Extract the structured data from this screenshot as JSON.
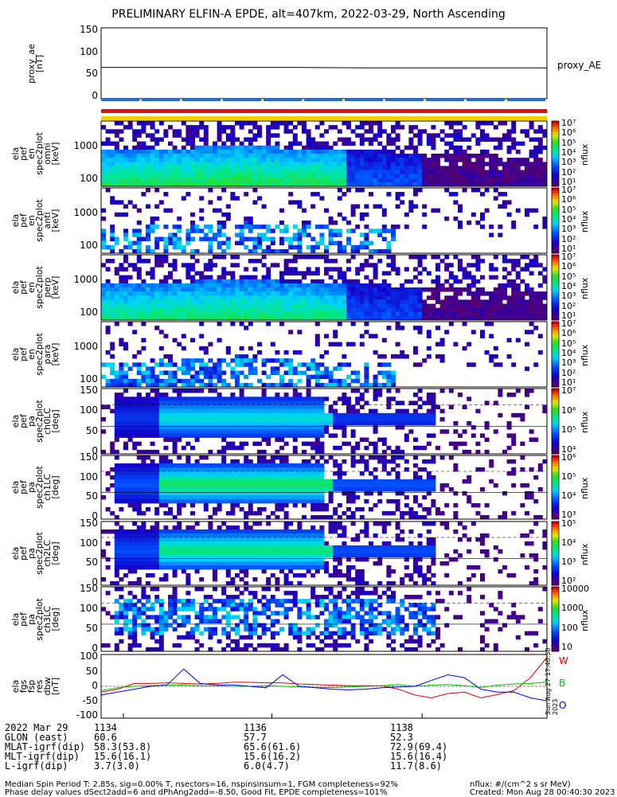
{
  "title": "PRELIMINARY ELFIN-A EPDE, alt=407km, 2022-03-29, North Ascending",
  "panels": [
    {
      "label": "proxy_ae\n[nT]",
      "ticks": [
        "150",
        "100",
        "50",
        "0"
      ],
      "right_label": "proxy_AE"
    },
    {
      "label": "ela\npef\nen\nspec2plot\nomni\n[keV]",
      "ticks": [
        "1000",
        "100"
      ],
      "cb_ticks": [
        "10⁷",
        "10⁶",
        "10⁵",
        "10⁴",
        "10³",
        "10²",
        "10¹"
      ]
    },
    {
      "label": "ela\npef\nen\nspec2plot\nanti\n[keV]",
      "ticks": [
        "1000",
        "100"
      ],
      "cb_ticks": [
        "10⁷",
        "10⁶",
        "10⁵",
        "10⁴",
        "10³",
        "10²",
        "10¹"
      ]
    },
    {
      "label": "ela\npef\nen\nspec2plot\nperp\n[keV]",
      "ticks": [
        "1000",
        "100"
      ],
      "cb_ticks": [
        "10⁷",
        "10⁶",
        "10⁵",
        "10⁴",
        "10³",
        "10²",
        "10¹"
      ]
    },
    {
      "label": "ela\npef\nen\nspec2plot\npara\n[keV]",
      "ticks": [
        "1000",
        "100"
      ],
      "cb_ticks": [
        "10⁷",
        "10⁶",
        "10⁵",
        "10⁴",
        "10³",
        "10²",
        "10¹"
      ]
    },
    {
      "label": "ela\npef\npa\nspec2plot\nch0LC\n[deg]",
      "ticks": [
        "150",
        "100",
        "50",
        "0"
      ],
      "cb_ticks": [
        "10⁷",
        "10⁶",
        "10⁵",
        "10⁴"
      ]
    },
    {
      "label": "ela\npef\npa\nspec2plot\nch1LC\n[deg]",
      "ticks": [
        "150",
        "100",
        "50",
        "0"
      ],
      "cb_ticks": [
        "10⁶",
        "10⁵",
        "10⁴",
        "10³"
      ]
    },
    {
      "label": "ela\npef\npa\nspec2plot\nch2LC\n[deg]",
      "ticks": [
        "150",
        "100",
        "50",
        "0"
      ],
      "cb_ticks": [
        "10⁵",
        "10⁴",
        "10³",
        "10²"
      ]
    },
    {
      "label": "ela\npef\npa\nspec2plot\nch3LC\n[deg]",
      "ticks": [
        "150",
        "100",
        "50",
        "0"
      ],
      "cb_ticks": [
        "10000",
        "1000",
        "100",
        "10"
      ]
    },
    {
      "label": "ela\nfgs\nfsp\nres\ndbw\n[nT]",
      "ticks": [
        "100",
        "50",
        "0",
        "-50",
        "-100"
      ]
    }
  ],
  "colorbar_label": "nflux",
  "side_stamp": "Sun Aug 27 17:40:30 2023",
  "fgs_legend": [
    "W",
    "B",
    "O"
  ],
  "bottom_rows": [
    [
      "2022 Mar 29",
      "1134",
      "1136",
      "1138"
    ],
    [
      "GLON (east)",
      "60.6",
      "57.7",
      "52.3"
    ],
    [
      "MLAT-igrf(dip)",
      "58.3(53.8)",
      "65.6(61.6)",
      "72.9(69.4)"
    ],
    [
      "MLT-igrf(dip)",
      "15.6(16.1)",
      "15.6(16.2)",
      "15.6(16.4)"
    ],
    [
      "L-igrf(dip)",
      "3.7(3.0)",
      "6.0(4.7)",
      "11.7(8.6)"
    ]
  ],
  "footer_left": [
    "Median Spin Period T: 2.85s, sig=0.00% T, nsectors=16, nspinsinsum=1, FGM completeness=92%",
    "Phase delay values dSect2add=6 and dPhAng2add=-8.50, Good Fit, EPDE completeness=101%"
  ],
  "footer_right": [
    "nflux: #/(cm^2 s sr MeV)",
    "Created: Mon Aug 28 00:40:30 2023"
  ],
  "chart_data": {
    "type": "line",
    "title": "PRELIMINARY ELFIN-A EPDE, alt=407km, 2022-03-29, North Ascending",
    "x_tick_labels": [
      "1134",
      "1136",
      "1138"
    ],
    "proxy_ae": {
      "ylim": [
        -10,
        155
      ],
      "values": [
        63,
        63,
        63,
        62,
        62,
        62
      ],
      "name": "proxy_AE"
    },
    "fgs_res_dbw": {
      "ylim": [
        -110,
        110
      ],
      "series": [
        {
          "name": "W",
          "color": "#e00000",
          "values": [
            -20,
            -10,
            10,
            10,
            12,
            10,
            8,
            10,
            14,
            14,
            12,
            12,
            8,
            6,
            4,
            2,
            2,
            2,
            -10,
            -30,
            -40,
            -25,
            -20,
            -40,
            -28,
            -15,
            30,
            100
          ]
        },
        {
          "name": "B",
          "color": "#00c000",
          "values": [
            -15,
            -5,
            0,
            2,
            4,
            4,
            2,
            2,
            0,
            0,
            2,
            0,
            -2,
            -4,
            -4,
            -2,
            0,
            2,
            6,
            0,
            4,
            6,
            2,
            -4,
            4,
            8,
            10,
            15
          ]
        },
        {
          "name": "O",
          "color": "#0000e0",
          "values": [
            -30,
            -20,
            -10,
            0,
            5,
            60,
            10,
            5,
            5,
            0,
            -5,
            40,
            0,
            -5,
            -10,
            -12,
            -10,
            -5,
            -2,
            0,
            20,
            40,
            30,
            -10,
            -20,
            -20,
            -40,
            -50
          ]
        }
      ]
    }
  }
}
